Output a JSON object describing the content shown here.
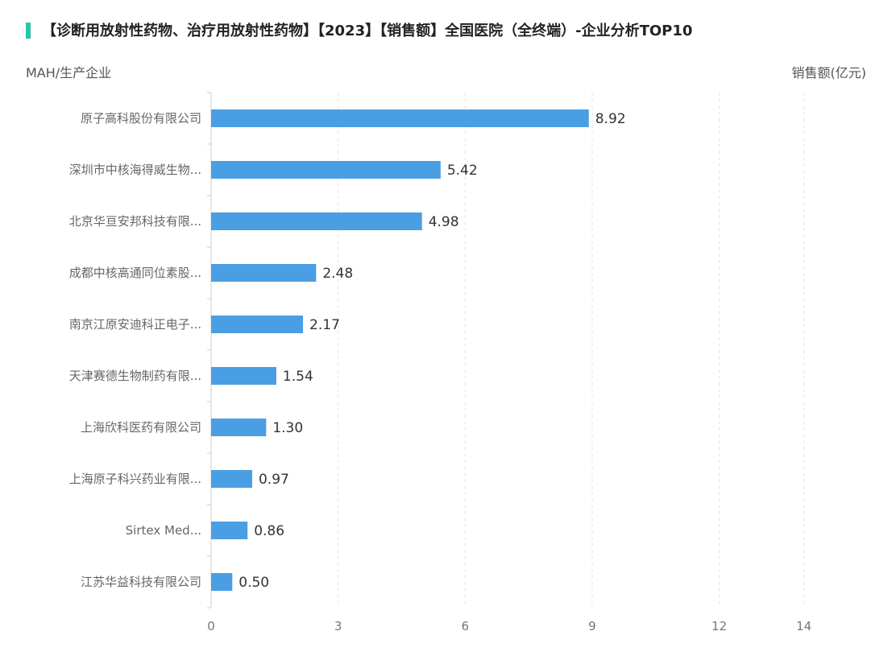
{
  "header": {
    "title": "【诊断用放射性药物、治疗用放射性药物】【2023】【销售额】全国医院（全终端）-企业分析TOP10",
    "accent_color": "#2bc4ae"
  },
  "chart_data": {
    "type": "bar",
    "orientation": "horizontal",
    "title": "【诊断用放射性药物、治疗用放射性药物】【2023】【销售额】全国医院（全终端）-企业分析TOP10",
    "ylabel": "MAH/生产企业",
    "xlabel": "销售额(亿元)",
    "categories": [
      "原子高科股份有限公司",
      "深圳市中核海得威生物...",
      "北京华亘安邦科技有限...",
      "成都中核高通同位素股...",
      "南京江原安迪科正电子...",
      "天津赛德生物制药有限...",
      "上海欣科医药有限公司",
      "上海原子科兴药业有限...",
      "Sirtex Med...",
      "江苏华益科技有限公司"
    ],
    "values": [
      8.92,
      5.42,
      4.98,
      2.48,
      2.17,
      1.54,
      1.3,
      0.97,
      0.86,
      0.5
    ],
    "value_labels": [
      "8.92",
      "5.42",
      "4.98",
      "2.48",
      "2.17",
      "1.54",
      "1.30",
      "0.97",
      "0.86",
      "0.50"
    ],
    "x_ticks": [
      0,
      3,
      6,
      9,
      12,
      14
    ],
    "x_tick_labels": [
      "0",
      "3",
      "6",
      "9",
      "12",
      "14"
    ],
    "xlim": [
      0,
      14
    ],
    "grid": true,
    "bar_color": "#4a9ee3"
  }
}
